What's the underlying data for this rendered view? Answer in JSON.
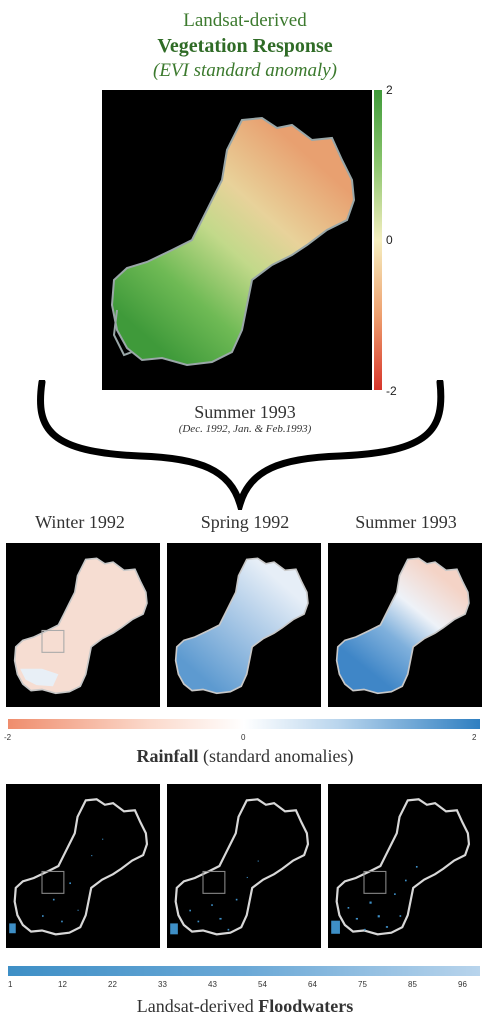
{
  "header": {
    "line1": "Landsat-derived",
    "line2": "Vegetation Response",
    "line3": "(EVI standard anomaly)"
  },
  "evi_colorbar": {
    "ticks": [
      "2",
      "0",
      "-2"
    ],
    "colors": {
      "high": "#3f9a3a",
      "mid": "#f5efc0",
      "low": "#d7352b"
    }
  },
  "summary": {
    "label": "Summer 1993",
    "detail": "(Dec. 1992, Jan. & Feb.1993)"
  },
  "seasons": [
    "Winter 1992",
    "Spring 1992",
    "Summer 1993"
  ],
  "rainfall_colorbar": {
    "ticks": [
      "-2",
      "0",
      "2"
    ],
    "title_bold": "Rainfall",
    "title_rest": " (standard anomalies)",
    "colors": {
      "low": "#ef8d6d",
      "mid": "#ffffff",
      "high": "#2f7fc1"
    }
  },
  "flood_colorbar": {
    "ticks": [
      "1",
      "12",
      "22",
      "33",
      "43",
      "54",
      "64",
      "75",
      "85",
      "96"
    ],
    "title_plain": "Landsat-derived ",
    "title_bold": "Floodwaters",
    "colors": {
      "low": "#3e8fc6",
      "high": "#b8d4ec"
    }
  }
}
